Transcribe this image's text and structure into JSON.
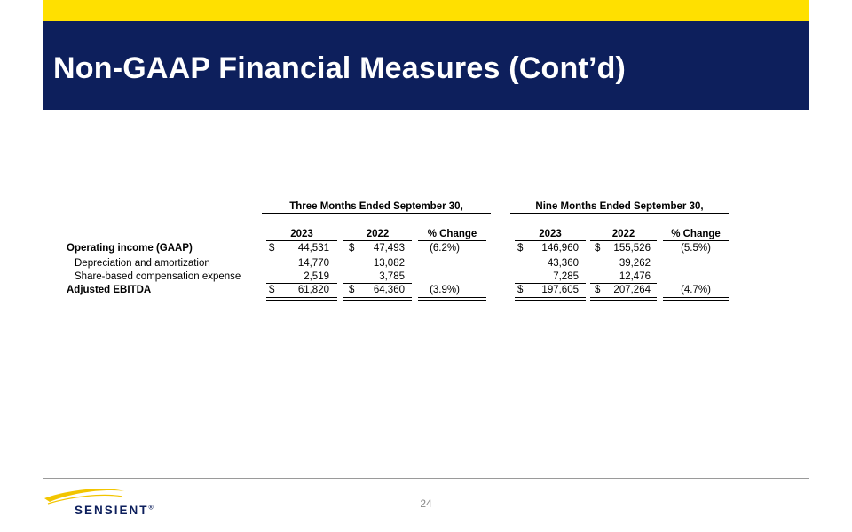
{
  "header": {
    "title": "Non-GAAP Financial Measures (Cont’d)"
  },
  "colors": {
    "accent_bar": "#FFE000",
    "header_band": "#0D1F5C",
    "logo_swoosh": "#F2C500"
  },
  "table": {
    "group_headers": [
      "Three Months Ended September 30,",
      "Nine Months Ended September 30,"
    ],
    "column_headers": [
      "2023",
      "2022",
      "% Change",
      "2023",
      "2022",
      "% Change"
    ],
    "currency_symbol": "$",
    "rows": [
      {
        "label": "Operating income (GAAP)",
        "values": [
          "44,531",
          "47,493",
          "(6.2%)",
          "146,960",
          "155,526",
          "(5.5%)"
        ]
      },
      {
        "label": "Depreciation and amortization",
        "values": [
          "14,770",
          "13,082",
          "",
          "43,360",
          "39,262",
          ""
        ]
      },
      {
        "label": "Share-based compensation expense",
        "values": [
          "2,519",
          "3,785",
          "",
          "7,285",
          "12,476",
          ""
        ]
      },
      {
        "label": "Adjusted EBITDA",
        "values": [
          "61,820",
          "64,360",
          "(3.9%)",
          "197,605",
          "207,264",
          "(4.7%)"
        ]
      }
    ]
  },
  "footer": {
    "page_number": "24",
    "logo_text": "SENSIENT",
    "logo_mark": "®"
  }
}
